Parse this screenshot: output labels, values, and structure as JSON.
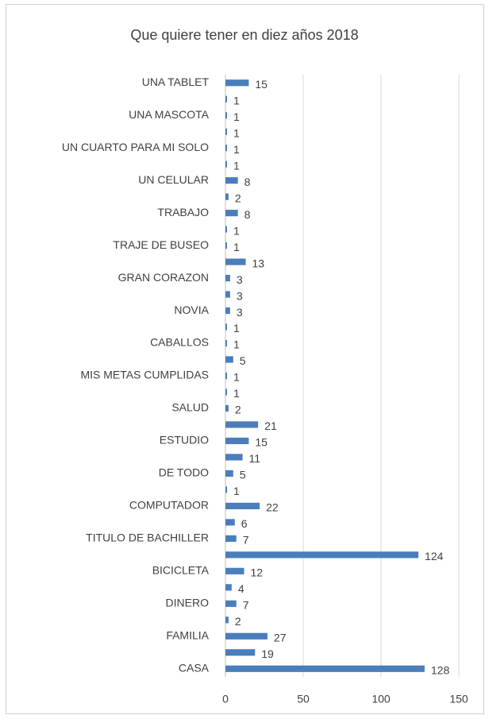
{
  "chart_data": {
    "type": "bar",
    "orientation": "horizontal",
    "title": "Que quiere tener en diez años 2018",
    "categories": [
      "CASA",
      null,
      "FAMILIA",
      null,
      "DINERO",
      null,
      "BICICLETA",
      null,
      "TITULO DE  BACHILLER",
      null,
      "COMPUTADOR",
      null,
      "DE TODO",
      null,
      "ESTUDIO",
      null,
      "SALUD",
      null,
      "MIS METAS CUMPLIDAS",
      null,
      "CABALLOS",
      null,
      "NOVIA",
      null,
      "GRAN CORAZON",
      null,
      "TRAJE DE BUSEO",
      null,
      "TRABAJO",
      null,
      "UN CELULAR",
      null,
      "UN CUARTO PARA MI SOLO",
      null,
      "UNA MASCOTA",
      null,
      "UNA TABLET"
    ],
    "values": [
      128,
      19,
      27,
      2,
      7,
      4,
      12,
      124,
      7,
      6,
      22,
      1,
      5,
      11,
      15,
      21,
      2,
      1,
      1,
      5,
      1,
      1,
      3,
      3,
      3,
      13,
      1,
      1,
      8,
      2,
      8,
      1,
      1,
      1,
      1,
      1,
      15
    ],
    "color": "#4a7ebb",
    "xlim": [
      0,
      150
    ],
    "xticks": [
      0,
      50,
      100,
      150
    ],
    "grid": true
  }
}
